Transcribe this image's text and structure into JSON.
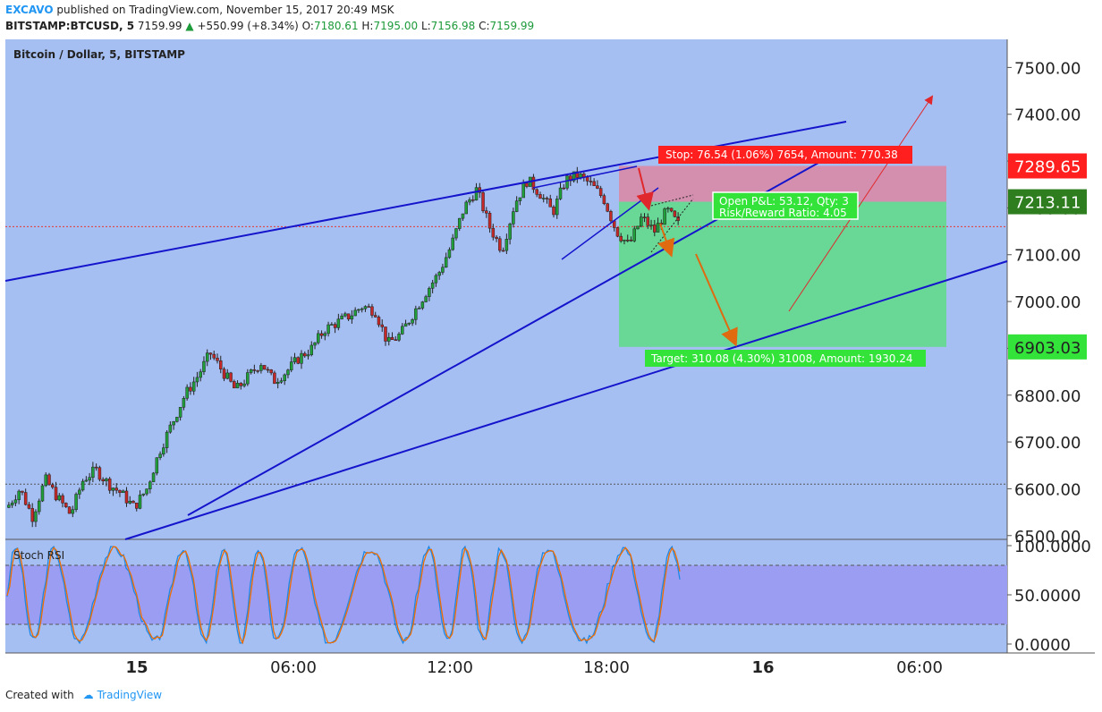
{
  "header": {
    "author": "EXCAVO",
    "published": "published on TradingView.com, November 15, 2017 20:49 MSK",
    "symbol": "BITSTAMP:BTCUSD, 5",
    "last": "7159.99",
    "change_arrow": "▲",
    "change": "+550.99 (+8.34%)",
    "o_label": "O:",
    "o": "7180.61",
    "h_label": "H:",
    "h": "7195.00",
    "l_label": "L:",
    "l": "7156.98",
    "c_label": "C:",
    "c": "7159.99"
  },
  "footer": {
    "created": "Created with",
    "brand": "TradingView"
  },
  "chart_data": {
    "type": "candlestick",
    "title": "Bitcoin / Dollar, 5, BITSTAMP",
    "x_ticks": [
      "15",
      "06:00",
      "12:00",
      "18:00",
      "16",
      "06:00"
    ],
    "y_ticks": [
      "7500.00",
      "7400.00",
      "7300.00",
      "7200.00",
      "7100.00",
      "7000.00",
      "6900.00",
      "6800.00",
      "6700.00",
      "6600.00",
      "6500.00"
    ],
    "ylim": [
      6490,
      7560
    ],
    "price_path": [
      [
        0,
        6560
      ],
      [
        1,
        6600
      ],
      [
        2,
        6540
      ],
      [
        3,
        6620
      ],
      [
        4,
        6580
      ],
      [
        5,
        6545
      ],
      [
        6,
        6620
      ],
      [
        7,
        6640
      ],
      [
        8,
        6610
      ],
      [
        9,
        6590
      ],
      [
        10,
        6560
      ],
      [
        11,
        6600
      ],
      [
        12,
        6680
      ],
      [
        13,
        6740
      ],
      [
        14,
        6800
      ],
      [
        15,
        6840
      ],
      [
        16,
        6890
      ],
      [
        17,
        6850
      ],
      [
        18,
        6810
      ],
      [
        19,
        6840
      ],
      [
        20,
        6870
      ],
      [
        21,
        6830
      ],
      [
        22,
        6850
      ],
      [
        23,
        6880
      ],
      [
        24,
        6900
      ],
      [
        25,
        6940
      ],
      [
        26,
        6955
      ],
      [
        27,
        6970
      ],
      [
        28,
        6990
      ],
      [
        29,
        6980
      ],
      [
        30,
        6910
      ],
      [
        31,
        6930
      ],
      [
        32,
        6975
      ],
      [
        33,
        7020
      ],
      [
        34,
        7060
      ],
      [
        35,
        7120
      ],
      [
        36,
        7200
      ],
      [
        37,
        7240
      ],
      [
        38,
        7160
      ],
      [
        39,
        7110
      ],
      [
        40,
        7210
      ],
      [
        41,
        7260
      ],
      [
        42,
        7230
      ],
      [
        43,
        7190
      ],
      [
        44,
        7260
      ],
      [
        45,
        7270
      ],
      [
        46,
        7250
      ],
      [
        47,
        7220
      ],
      [
        48,
        7150
      ],
      [
        49,
        7120
      ],
      [
        50,
        7180
      ],
      [
        51,
        7150
      ],
      [
        52,
        7195
      ],
      [
        53,
        7160
      ]
    ],
    "reference_lines": [
      {
        "price": 7160,
        "color": "#e53935"
      },
      {
        "price": 6610,
        "color": "#555555"
      }
    ],
    "price_labels": [
      {
        "price": 7289.65,
        "text": "7289.65",
        "color": "#ff1f1f"
      },
      {
        "price": 7213.11,
        "text": "7213.11",
        "color": "#2e7d1e"
      },
      {
        "price": 6903.03,
        "text": "6903.03",
        "color": "#33e33a"
      }
    ],
    "position": {
      "stop_label": "Stop: 76.54 (1.06%) 7654, Amount: 770.38",
      "target_label": "Target: 310.08 (4.30%) 31008, Amount: 1930.24",
      "pnl_label": "Open P&L: 53.12, Qty: 3",
      "rr_label": "Risk/Reward Ratio: 4.05",
      "entry": 7213.11,
      "stop": 7289.65,
      "target": 6903.03
    }
  },
  "indicator": {
    "title": "Stoch RSI",
    "y_ticks": [
      "100.0000",
      "50.0000",
      "0.0000"
    ],
    "upper_band": 80,
    "lower_band": 20,
    "series_colors": [
      "#1e88e5",
      "#ef6c00"
    ]
  },
  "colors": {
    "plot_bg": "#a6bff2",
    "up": "#1f9e3a",
    "down": "#c62828",
    "trendline": "#1414cc",
    "arrow_red": "#e0282c",
    "arrow_orange": "#e06a10",
    "stop_zone": "#d98aa6",
    "target_zone": "#63d98c",
    "rsi_band": "#9b9df2"
  }
}
